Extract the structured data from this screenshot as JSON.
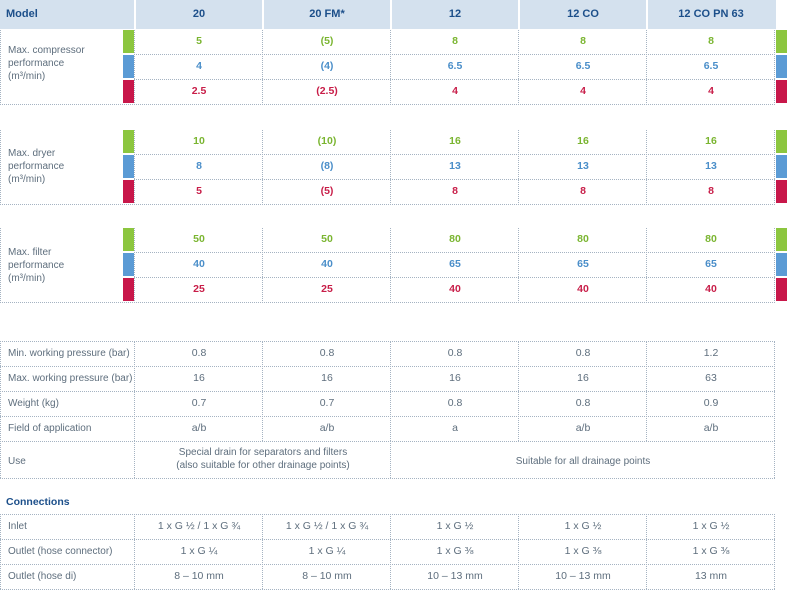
{
  "header": {
    "model_label": "Model",
    "columns": [
      "20",
      "20 FM*",
      "12",
      "12 CO",
      "12 CO PN 63"
    ]
  },
  "performance_sections": [
    {
      "label_lines": [
        "Max. compressor",
        "performance",
        "(m³/min)"
      ],
      "rows": [
        {
          "color": "green",
          "values": [
            "5",
            "(5)",
            "8",
            "8",
            "8"
          ]
        },
        {
          "color": "blue",
          "values": [
            "4",
            "(4)",
            "6.5",
            "6.5",
            "6.5"
          ]
        },
        {
          "color": "red",
          "values": [
            "2.5",
            "(2.5)",
            "4",
            "4",
            "4"
          ]
        }
      ]
    },
    {
      "label_lines": [
        "Max. dryer",
        "performance",
        "(m³/min)"
      ],
      "rows": [
        {
          "color": "green",
          "values": [
            "10",
            "(10)",
            "16",
            "16",
            "16"
          ]
        },
        {
          "color": "blue",
          "values": [
            "8",
            "(8)",
            "13",
            "13",
            "13"
          ]
        },
        {
          "color": "red",
          "values": [
            "5",
            "(5)",
            "8",
            "8",
            "8"
          ]
        }
      ]
    },
    {
      "label_lines": [
        "Max. filter",
        "performance",
        "(m³/min)"
      ],
      "rows": [
        {
          "color": "green",
          "values": [
            "50",
            "50",
            "80",
            "80",
            "80"
          ]
        },
        {
          "color": "blue",
          "values": [
            "40",
            "40",
            "65",
            "65",
            "65"
          ]
        },
        {
          "color": "red",
          "values": [
            "25",
            "25",
            "40",
            "40",
            "40"
          ]
        }
      ]
    }
  ],
  "specs": [
    {
      "label": "Min. working pressure (bar)",
      "values": [
        "0.8",
        "0.8",
        "0.8",
        "0.8",
        "1.2"
      ]
    },
    {
      "label": "Max. working pressure (bar)",
      "values": [
        "16",
        "16",
        "16",
        "16",
        "63"
      ]
    },
    {
      "label": "Weight (kg)",
      "values": [
        "0.7",
        "0.7",
        "0.8",
        "0.8",
        "0.9"
      ]
    },
    {
      "label": "Field of application",
      "values": [
        "a/b",
        "a/b",
        "a",
        "a/b",
        "a/b"
      ]
    }
  ],
  "use_row": {
    "label": "Use",
    "left_lines": [
      "Special drain for separators and filters",
      "(also suitable for other drainage points)"
    ],
    "right": "Suitable for all drainage points"
  },
  "connections": {
    "title": "Connections",
    "rows": [
      {
        "label": "Inlet",
        "values": [
          "1 x G ½ / 1 x G ¾",
          "1 x G ½ / 1 x G ¾",
          "1 x G ½",
          "1 x G ½",
          "1 x G ½"
        ]
      },
      {
        "label": "Outlet (hose connector)",
        "values": [
          "1 x G ¼",
          "1 x G ¼",
          "1 x G ⅜",
          "1 x G ⅜",
          "1 x G ⅜"
        ]
      },
      {
        "label": "Outlet (hose di)",
        "values": [
          "8 – 10 mm",
          "8 – 10 mm",
          "10 – 13 mm",
          "10 – 13 mm",
          "13 mm"
        ]
      }
    ]
  },
  "colors": {
    "green": "#8cc63f",
    "blue": "#5b9bd5",
    "red": "#c8174a",
    "header_bg": "#d4e1ee",
    "header_text": "#1c4f8a"
  }
}
